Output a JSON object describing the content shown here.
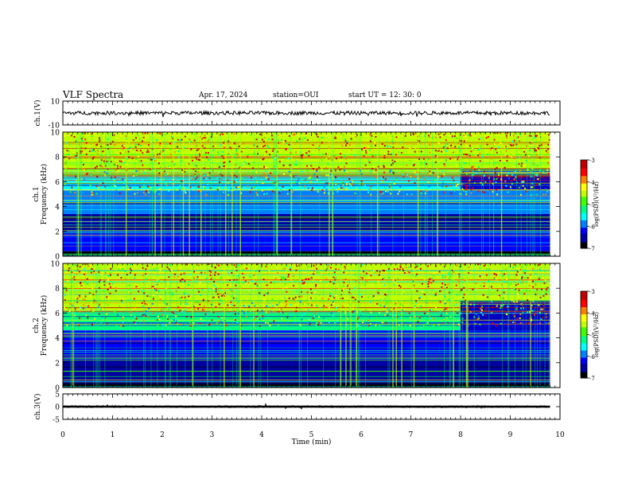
{
  "header": {
    "title": "VLF Spectra",
    "date": "Apr. 17, 2024",
    "station": "station=OUI",
    "start": "start  UT =   12: 30: 0"
  },
  "chart_data": [
    {
      "type": "line",
      "panel": "waveform-ch1",
      "ylabel": "ch.1(V)",
      "ylim": [
        -10,
        10
      ],
      "yticks": [
        "10",
        "-10"
      ],
      "x_range": [
        0,
        9.8
      ],
      "mean": 0,
      "approx_amplitude": 1.5
    },
    {
      "type": "heatmap",
      "panel": "spectrogram-ch1",
      "ylabel": "ch.1 Frequency (kHz)",
      "ylim": [
        0,
        10
      ],
      "yticks": [
        "0",
        "2",
        "4",
        "6",
        "8",
        "10"
      ],
      "x_range": [
        0,
        9.8
      ],
      "colorbar": {
        "label": "log(PSD)(V²/Hz)",
        "ticks": [
          "-3",
          "-4",
          "-5",
          "-6",
          "-7"
        ],
        "range": [
          -7,
          -3
        ]
      },
      "bands": [
        {
          "f_low": 6.5,
          "f_high": 10,
          "log_psd": -4.6
        },
        {
          "f_low": 5.3,
          "f_high": 6.5,
          "log_psd": -5.4
        },
        {
          "f_low": 3.4,
          "f_high": 5.3,
          "log_psd": -6.0
        },
        {
          "f_low": 2.0,
          "f_high": 3.4,
          "log_psd": -6.6
        },
        {
          "f_low": 0.4,
          "f_high": 2.0,
          "log_psd": -6.3
        },
        {
          "f_low": 0,
          "f_high": 0.4,
          "log_psd": -6.8
        }
      ],
      "after_8min_upper_edge_khz": 7.0
    },
    {
      "type": "heatmap",
      "panel": "spectrogram-ch2",
      "ylabel": "ch.2 Frequency (kHz)",
      "ylim": [
        0,
        10
      ],
      "yticks": [
        "0",
        "2",
        "4",
        "6",
        "8",
        "10"
      ],
      "x_range": [
        0,
        9.8
      ],
      "colorbar": {
        "label": "log(PSD)(V²/Hz)",
        "ticks": [
          "-3",
          "-4",
          "-5",
          "-6",
          "-7"
        ],
        "range": [
          -7,
          -3
        ]
      },
      "bands": [
        {
          "f_low": 6.2,
          "f_high": 10,
          "log_psd": -4.6
        },
        {
          "f_low": 4.6,
          "f_high": 6.2,
          "log_psd": -5.3
        },
        {
          "f_low": 2.2,
          "f_high": 4.6,
          "log_psd": -6.1
        },
        {
          "f_low": 0.4,
          "f_high": 2.2,
          "log_psd": -6.4
        },
        {
          "f_low": 0,
          "f_high": 0.4,
          "log_psd": -6.8
        }
      ],
      "after_8min_upper_edge_khz": 7.0
    },
    {
      "type": "line",
      "panel": "waveform-ch3",
      "ylabel": "ch.3(V)",
      "ylim": [
        -5,
        5
      ],
      "yticks": [
        "5",
        "0",
        "-5"
      ],
      "x_range": [
        0,
        9.8
      ],
      "mean": 0,
      "approx_amplitude": 0.4
    }
  ],
  "x_axis": {
    "label": "Time  (min)",
    "ticks": [
      "0",
      "1",
      "2",
      "3",
      "4",
      "5",
      "6",
      "7",
      "8",
      "9",
      "10"
    ],
    "range": [
      0,
      10
    ]
  },
  "colors": {
    "colormap": [
      "#000000",
      "#0000a0",
      "#0000ff",
      "#0080ff",
      "#00ffff",
      "#00ff80",
      "#40ff00",
      "#c0ff00",
      "#ffff00",
      "#ff8000",
      "#ff0000",
      "#c00000",
      "#ffffff"
    ]
  }
}
